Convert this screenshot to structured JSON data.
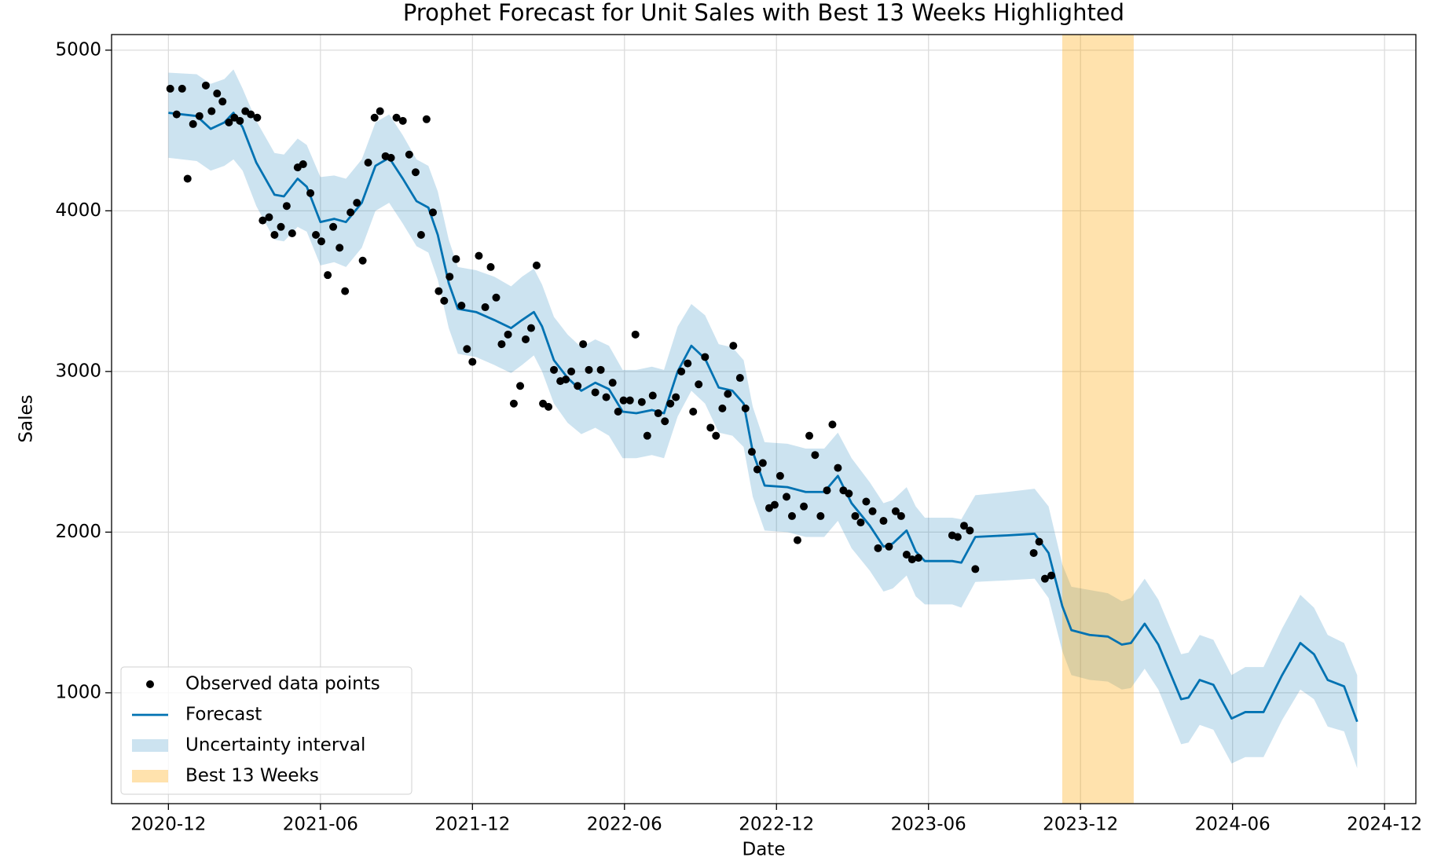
{
  "chart_data": {
    "type": "line",
    "title": "Prophet Forecast for Unit Sales with Best 13 Weeks Highlighted",
    "xlabel": "Date",
    "ylabel": "Sales",
    "xlim": [
      2020.73,
      2025.02
    ],
    "ylim": [
      310,
      5097
    ],
    "xticks": [
      {
        "value": 2020.917,
        "label": "2020-12"
      },
      {
        "value": 2021.417,
        "label": "2021-06"
      },
      {
        "value": 2021.917,
        "label": "2021-12"
      },
      {
        "value": 2022.417,
        "label": "2022-06"
      },
      {
        "value": 2022.917,
        "label": "2022-12"
      },
      {
        "value": 2023.417,
        "label": "2023-06"
      },
      {
        "value": 2023.917,
        "label": "2023-12"
      },
      {
        "value": 2024.417,
        "label": "2024-06"
      },
      {
        "value": 2024.917,
        "label": "2024-12"
      }
    ],
    "yticks": [
      1000,
      2000,
      3000,
      4000,
      5000
    ],
    "grid": true,
    "legend": "lower left",
    "observed": {
      "name": "Observed data points",
      "color": "#000000",
      "x": [
        2020.923,
        2020.944,
        2020.962,
        2020.98,
        2020.998,
        2021.019,
        2021.04,
        2021.059,
        2021.077,
        2021.095,
        2021.116,
        2021.134,
        2021.152,
        2021.17,
        2021.188,
        2021.209,
        2021.227,
        2021.248,
        2021.266,
        2021.287,
        2021.306,
        2021.324,
        2021.342,
        2021.36,
        2021.384,
        2021.402,
        2021.42,
        2021.441,
        2021.459,
        2021.48,
        2021.498,
        2021.516,
        2021.537,
        2021.556,
        2021.574,
        2021.595,
        2021.613,
        2021.631,
        2021.649,
        2021.667,
        2021.688,
        2021.709,
        2021.73,
        2021.748,
        2021.766,
        2021.787,
        2021.806,
        2021.824,
        2021.842,
        2021.863,
        2021.881,
        2021.899,
        2021.917,
        2021.938,
        2021.959,
        2021.977,
        2021.995,
        2022.013,
        2022.034,
        2022.053,
        2022.074,
        2022.092,
        2022.11,
        2022.128,
        2022.149,
        2022.167,
        2022.185,
        2022.206,
        2022.224,
        2022.242,
        2022.263,
        2022.281,
        2022.3,
        2022.321,
        2022.339,
        2022.357,
        2022.378,
        2022.396,
        2022.414,
        2022.435,
        2022.453,
        2022.474,
        2022.492,
        2022.51,
        2022.528,
        2022.55,
        2022.568,
        2022.586,
        2022.604,
        2022.625,
        2022.643,
        2022.661,
        2022.682,
        2022.7,
        2022.718,
        2022.739,
        2022.757,
        2022.775,
        2022.797,
        2022.815,
        2022.836,
        2022.854,
        2022.872,
        2022.893,
        2022.911,
        2022.929,
        2022.95,
        2022.968,
        2022.986,
        2023.007,
        2023.025,
        2023.044,
        2023.062,
        2023.083,
        2023.101,
        2023.119,
        2023.137,
        2023.155,
        2023.176,
        2023.194,
        2023.212,
        2023.233,
        2023.251,
        2023.269,
        2023.287,
        2023.309,
        2023.327,
        2023.345,
        2023.363,
        2023.384,
        2023.495,
        2023.513,
        2023.534,
        2023.553,
        2023.571,
        2023.763,
        2023.781,
        2023.8,
        2023.821
      ],
      "values": [
        4760,
        4600,
        4760,
        4200,
        4540,
        4590,
        4780,
        4620,
        4730,
        4680,
        4550,
        4580,
        4560,
        4620,
        4600,
        4580,
        3940,
        3960,
        3850,
        3900,
        4030,
        3860,
        4270,
        4290,
        4110,
        3850,
        3810,
        3600,
        3900,
        3770,
        3500,
        3990,
        4050,
        3690,
        4300,
        4580,
        4620,
        4340,
        4330,
        4580,
        4560,
        4350,
        4240,
        3850,
        4570,
        3990,
        3500,
        3440,
        3590,
        3700,
        3410,
        3140,
        3060,
        3720,
        3400,
        3650,
        3460,
        3170,
        3230,
        2800,
        2910,
        3200,
        3270,
        3660,
        2800,
        2780,
        3010,
        2940,
        2950,
        3000,
        2910,
        3170,
        3010,
        2870,
        3010,
        2840,
        2930,
        2750,
        2820,
        2820,
        3230,
        2810,
        2600,
        2850,
        2740,
        2690,
        2800,
        2840,
        3000,
        3050,
        2750,
        2920,
        3090,
        2650,
        2600,
        2770,
        2860,
        3160,
        2960,
        2770,
        2500,
        2390,
        2430,
        2150,
        2170,
        2350,
        2220,
        2100,
        1950,
        2160,
        2600,
        2480,
        2100,
        2260,
        2670,
        2400,
        2260,
        2240,
        2100,
        2060,
        2190,
        2130,
        1900,
        2070,
        1910,
        2130,
        2100,
        1860,
        1830,
        1840,
        1980,
        1970,
        2040,
        2010,
        1770,
        1870,
        1940,
        1710,
        1730
      ]
    },
    "forecast": {
      "name": "Forecast",
      "color": "#0072B2",
      "x": [
        2020.917,
        2021.01,
        2021.056,
        2021.101,
        2021.131,
        2021.161,
        2021.206,
        2021.266,
        2021.297,
        2021.342,
        2021.372,
        2021.417,
        2021.462,
        2021.501,
        2021.553,
        2021.598,
        2021.643,
        2021.688,
        2021.733,
        2021.772,
        2021.803,
        2021.839,
        2021.869,
        2021.929,
        2021.989,
        2022.044,
        2022.08,
        2022.119,
        2022.146,
        2022.185,
        2022.23,
        2022.275,
        2022.321,
        2022.366,
        2022.411,
        2022.456,
        2022.507,
        2022.547,
        2022.592,
        2022.637,
        2022.682,
        2022.727,
        2022.772,
        2022.809,
        2022.839,
        2022.878,
        2022.953,
        2023.013,
        2023.074,
        2023.119,
        2023.164,
        2023.224,
        2023.269,
        2023.3,
        2023.345,
        2023.375,
        2023.405,
        2023.495,
        2023.525,
        2023.571,
        2023.676,
        2023.766,
        2023.812,
        2023.857,
        2023.887,
        2023.947,
        2024.007,
        2024.053,
        2024.083,
        2024.128,
        2024.173,
        2024.248,
        2024.272,
        2024.309,
        2024.354,
        2024.414,
        2024.459,
        2024.519,
        2024.58,
        2024.64,
        2024.685,
        2024.73,
        2024.784,
        2024.827
      ],
      "values": [
        4610,
        4590,
        4510,
        4550,
        4610,
        4520,
        4300,
        4100,
        4090,
        4200,
        4150,
        3930,
        3950,
        3930,
        4050,
        4280,
        4330,
        4200,
        4060,
        4020,
        3850,
        3550,
        3390,
        3370,
        3320,
        3270,
        3320,
        3370,
        3280,
        3070,
        2960,
        2880,
        2930,
        2890,
        2750,
        2740,
        2760,
        2740,
        3000,
        3160,
        3080,
        2900,
        2880,
        2800,
        2500,
        2290,
        2280,
        2250,
        2250,
        2350,
        2180,
        2040,
        1910,
        1930,
        2010,
        1880,
        1820,
        1820,
        1810,
        1970,
        1980,
        1990,
        1870,
        1540,
        1390,
        1360,
        1350,
        1300,
        1310,
        1430,
        1300,
        960,
        970,
        1080,
        1050,
        840,
        880,
        880,
        1110,
        1310,
        1240,
        1080,
        1040,
        820
      ]
    },
    "band": {
      "name": "Uncertainty interval",
      "color": "#0072B2",
      "lower": [
        4330,
        4310,
        4250,
        4280,
        4320,
        4250,
        4030,
        3820,
        3810,
        3900,
        3870,
        3660,
        3680,
        3650,
        3770,
        4000,
        4050,
        3920,
        3780,
        3740,
        3570,
        3270,
        3110,
        3090,
        3040,
        2990,
        3040,
        3100,
        3000,
        2800,
        2680,
        2610,
        2650,
        2600,
        2460,
        2460,
        2480,
        2460,
        2720,
        2880,
        2800,
        2620,
        2600,
        2530,
        2220,
        2010,
        2000,
        1970,
        1970,
        2070,
        1900,
        1760,
        1630,
        1650,
        1730,
        1600,
        1550,
        1550,
        1530,
        1690,
        1700,
        1710,
        1590,
        1260,
        1110,
        1080,
        1070,
        1020,
        1030,
        1150,
        1020,
        680,
        690,
        800,
        770,
        560,
        600,
        600,
        830,
        1020,
        960,
        790,
        760,
        530
      ],
      "upper": [
        4860,
        4850,
        4790,
        4820,
        4880,
        4760,
        4560,
        4360,
        4350,
        4450,
        4410,
        4210,
        4220,
        4200,
        4320,
        4550,
        4600,
        4470,
        4320,
        4280,
        4120,
        3820,
        3650,
        3630,
        3590,
        3530,
        3590,
        3640,
        3540,
        3340,
        3230,
        3150,
        3200,
        3160,
        3010,
        3010,
        3030,
        3010,
        3280,
        3420,
        3350,
        3170,
        3150,
        3070,
        2780,
        2560,
        2550,
        2520,
        2520,
        2620,
        2460,
        2310,
        2180,
        2200,
        2280,
        2160,
        2090,
        2090,
        2080,
        2230,
        2250,
        2270,
        2160,
        1800,
        1660,
        1640,
        1620,
        1570,
        1590,
        1710,
        1580,
        1240,
        1250,
        1360,
        1330,
        1110,
        1160,
        1160,
        1400,
        1610,
        1530,
        1360,
        1310,
        1110
      ]
    },
    "highlight": {
      "name": "Best 13 Weeks",
      "color": "#FFA500",
      "range": [
        2023.857,
        2024.092
      ]
    }
  }
}
